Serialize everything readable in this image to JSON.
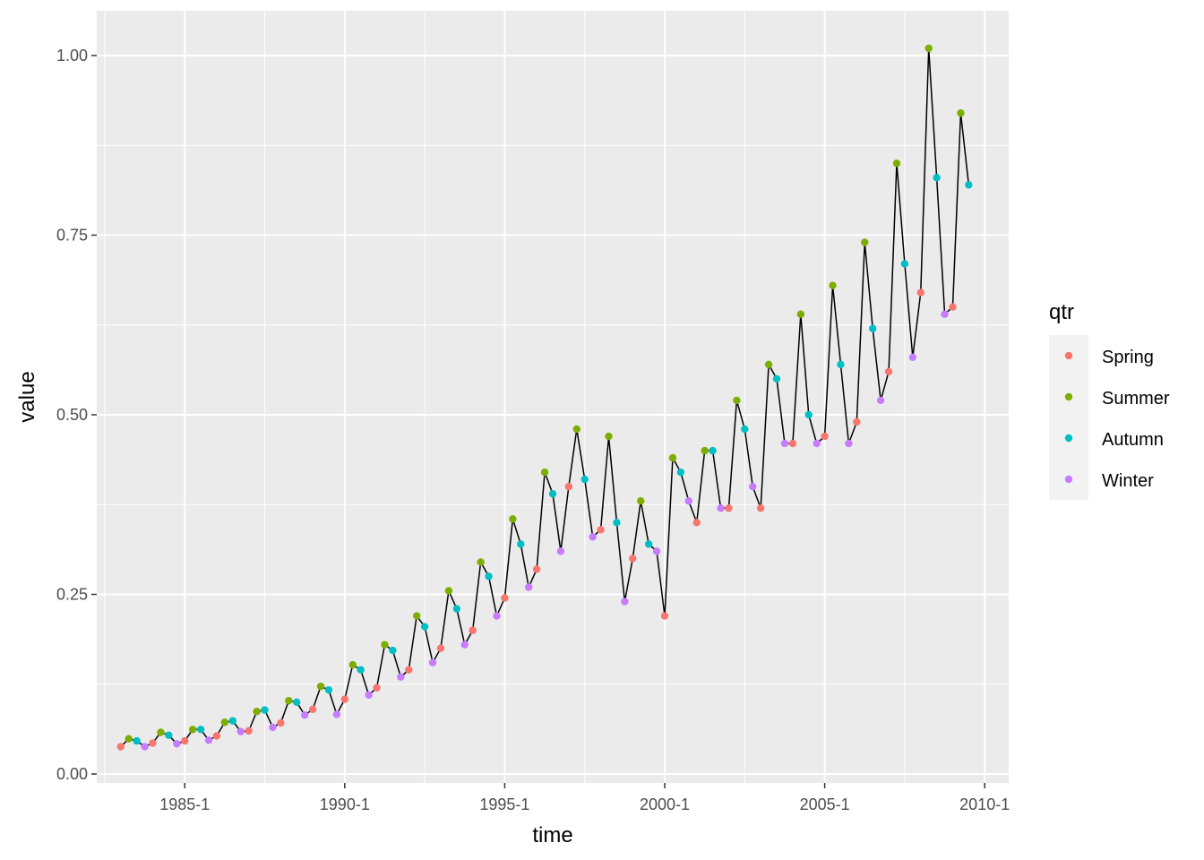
{
  "chart_data": {
    "type": "line",
    "xlabel": "time",
    "ylabel": "value",
    "x_start": 1983.0,
    "x_step": 0.25,
    "xlim": [
      1982.25,
      2010.75
    ],
    "ylim": [
      -0.0125,
      1.0
    ],
    "x_ticks": [
      {
        "value": 1985.0,
        "label": "1985-1"
      },
      {
        "value": 1990.0,
        "label": "1990-1"
      },
      {
        "value": 1995.0,
        "label": "1995-1"
      },
      {
        "value": 2000.0,
        "label": "2000-1"
      },
      {
        "value": 2005.0,
        "label": "2005-1"
      },
      {
        "value": 2010.0,
        "label": "2010-1"
      }
    ],
    "y_ticks": [
      {
        "value": 0.0,
        "label": "0.00"
      },
      {
        "value": 0.25,
        "label": "0.25"
      },
      {
        "value": 0.5,
        "label": "0.50"
      },
      {
        "value": 0.75,
        "label": "0.75"
      },
      {
        "value": 1.0,
        "label": "1.00"
      }
    ],
    "grid": true,
    "legend": {
      "title": "qtr",
      "position": "right",
      "entries": [
        {
          "label": "Spring",
          "color": "#F8766D"
        },
        {
          "label": "Summer",
          "color": "#7CAE00"
        },
        {
          "label": "Autumn",
          "color": "#00BFC4"
        },
        {
          "label": "Winter",
          "color": "#C77CFF"
        }
      ]
    },
    "line_color": "#000000",
    "values": [
      0.038,
      0.049,
      0.046,
      0.038,
      0.043,
      0.058,
      0.054,
      0.042,
      0.046,
      0.062,
      0.062,
      0.047,
      0.053,
      0.072,
      0.074,
      0.059,
      0.06,
      0.087,
      0.089,
      0.065,
      0.071,
      0.102,
      0.1,
      0.082,
      0.09,
      0.122,
      0.117,
      0.083,
      0.104,
      0.152,
      0.145,
      0.11,
      0.12,
      0.18,
      0.172,
      0.135,
      0.145,
      0.22,
      0.205,
      0.155,
      0.175,
      0.255,
      0.23,
      0.18,
      0.2,
      0.295,
      0.275,
      0.22,
      0.245,
      0.355,
      0.32,
      0.26,
      0.285,
      0.42,
      0.39,
      0.31,
      0.4,
      0.48,
      0.41,
      0.33,
      0.34,
      0.47,
      0.35,
      0.24,
      0.3,
      0.38,
      0.32,
      0.31,
      0.22,
      0.44,
      0.42,
      0.38,
      0.35,
      0.45,
      0.45,
      0.37,
      0.37,
      0.52,
      0.48,
      0.4,
      0.37,
      0.57,
      0.55,
      0.46,
      0.46,
      0.64,
      0.5,
      0.46,
      0.47,
      0.68,
      0.57,
      0.46,
      0.49,
      0.74,
      0.62,
      0.52,
      0.56,
      0.85,
      0.71,
      0.58,
      0.67,
      1.01,
      0.83,
      0.64,
      0.65,
      0.92,
      0.82
    ]
  }
}
